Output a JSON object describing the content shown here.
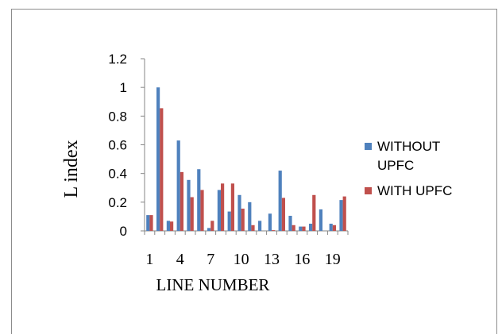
{
  "chart_data": {
    "type": "bar",
    "title": "",
    "xlabel": "LINE NUMBER",
    "ylabel": "L index",
    "ylim": [
      0,
      1.2
    ],
    "yticks": [
      "0",
      "0.2",
      "0.4",
      "0.6",
      "0.8",
      "1",
      "1.2"
    ],
    "categories": [
      1,
      2,
      3,
      4,
      5,
      6,
      7,
      8,
      9,
      10,
      11,
      12,
      13,
      14,
      15,
      16,
      17,
      18,
      19,
      20
    ],
    "xtick_labels": [
      "1",
      "4",
      "7",
      "10",
      "13",
      "16",
      "19"
    ],
    "xtick_categories": [
      1,
      4,
      7,
      10,
      13,
      16,
      19
    ],
    "legend_position": "right",
    "series": [
      {
        "name": "WITHOUT UPFC",
        "legend_lines": [
          "WITHOUT",
          "UPFC"
        ],
        "color": "#4f81bd",
        "values": [
          0.11,
          1.0,
          0.07,
          0.63,
          0.355,
          0.43,
          0.02,
          0.285,
          0.135,
          0.25,
          0.2,
          0.07,
          0.12,
          0.42,
          0.105,
          0.03,
          0.05,
          0.15,
          0.05,
          0.215
        ]
      },
      {
        "name": "WITH UPFC",
        "legend_lines": [
          "WITH UPFC"
        ],
        "color": "#c0504d",
        "values": [
          0.11,
          0.855,
          0.065,
          0.41,
          0.235,
          0.285,
          0.07,
          0.33,
          0.33,
          0.155,
          0.04,
          0.0,
          0.005,
          0.23,
          0.04,
          0.03,
          0.25,
          0.0,
          0.04,
          0.24
        ]
      }
    ]
  }
}
